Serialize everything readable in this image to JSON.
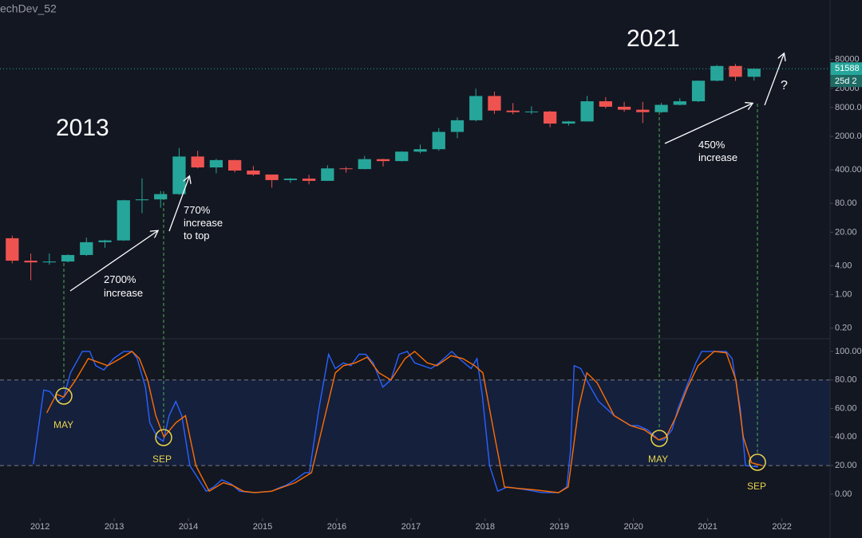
{
  "chart_data": [
    {
      "type": "candlestick",
      "watermark": "echDev_52",
      "x": [
        2011.625,
        2011.875,
        2012.125,
        2012.375,
        2012.625,
        2012.875,
        2013.125,
        2013.375,
        2013.625,
        2013.875,
        2014.125,
        2014.375,
        2014.625,
        2014.875,
        2015.125,
        2015.375,
        2015.625,
        2015.875,
        2016.125,
        2016.375,
        2016.625,
        2016.875,
        2017.125,
        2017.375,
        2017.625,
        2017.875,
        2018.125,
        2018.375,
        2018.625,
        2018.875,
        2019.125,
        2019.375,
        2019.625,
        2019.875,
        2020.125,
        2020.375,
        2020.625,
        2020.875,
        2021.125,
        2021.375,
        2021.625
      ],
      "open": [
        15,
        5.1,
        4.7,
        4.9,
        6.7,
        12.4,
        13.5,
        93,
        97,
        125,
        760,
        450,
        640,
        387,
        320,
        245,
        263,
        236,
        430,
        416,
        670,
        610,
        960,
        1080,
        2480,
        4340,
        13900,
        6900,
        6400,
        6600,
        3700,
        4100,
        10800,
        8300,
        7200,
        6400,
        9100,
        10800,
        29000,
        58800,
        35000
      ],
      "high": [
        17,
        7.2,
        7.2,
        6.9,
        15.4,
        13.9,
        95,
        266,
        145,
        1150,
        1000,
        680,
        650,
        480,
        320,
        270,
        315,
        500,
        460,
        780,
        680,
        980,
        1350,
        2980,
        5000,
        19800,
        17200,
        9900,
        8500,
        6800,
        4200,
        13900,
        13200,
        10500,
        10500,
        10000,
        12500,
        29300,
        61800,
        64900,
        52900
      ],
      "low": [
        4.5,
        2.0,
        4.2,
        4.7,
        6.4,
        9.5,
        13.2,
        50,
        65,
        120,
        430,
        340,
        355,
        300,
        170,
        215,
        200,
        235,
        350,
        410,
        470,
        600,
        890,
        1000,
        1830,
        4100,
        5900,
        5800,
        5800,
        3100,
        3350,
        4080,
        7700,
        6500,
        3800,
        6200,
        8900,
        10400,
        28100,
        28800,
        29300
      ],
      "close": [
        5.1,
        4.7,
        4.9,
        6.7,
        12.4,
        13.5,
        93,
        97,
        125,
        760,
        450,
        640,
        387,
        320,
        245,
        263,
        236,
        430,
        416,
        670,
        610,
        960,
        1080,
        2480,
        4340,
        13900,
        6900,
        6400,
        6600,
        3700,
        4100,
        10800,
        8300,
        7200,
        6400,
        9100,
        10800,
        29000,
        58800,
        35000,
        51588
      ],
      "up_color": "#26a69a",
      "down_color": "#ef5350",
      "last_price": 51588,
      "countdown": "25d 2",
      "xlim": [
        2011.46,
        2022.65
      ],
      "ylim": [
        0.12,
        1400000
      ],
      "log_scale": true,
      "yticks": [
        {
          "value": 0.2,
          "label": "0.20"
        },
        {
          "value": 1,
          "label": "1.00"
        },
        {
          "value": 4,
          "label": "4.00"
        },
        {
          "value": 20,
          "label": "20.00"
        },
        {
          "value": 80,
          "label": "80.00"
        },
        {
          "value": 400,
          "label": "400.00"
        },
        {
          "value": 2000,
          "label": "2000.0"
        },
        {
          "value": 8000,
          "label": "8000.0"
        },
        20000,
        80000
      ],
      "annotations": [
        [
          "2013"
        ],
        [
          "2021"
        ],
        [
          "2700%",
          "increase"
        ],
        [
          "770%",
          "increase",
          "to top"
        ],
        [
          "450%",
          "increase"
        ],
        [
          "?"
        ]
      ]
    },
    {
      "type": "line",
      "series": [
        {
          "color": "#2962ff",
          "x": [
            2011.91,
            2012.05,
            2012.13,
            2012.24,
            2012.32,
            2012.41,
            2012.57,
            2012.67,
            2012.75,
            2012.86,
            2012.99,
            2013.13,
            2013.24,
            2013.31,
            2013.42,
            2013.48,
            2013.58,
            2013.66,
            2013.74,
            2013.83,
            2013.91,
            2014.02,
            2014.24,
            2014.34,
            2014.45,
            2014.58,
            2014.69,
            2014.88,
            2015.12,
            2015.25,
            2015.31,
            2015.44,
            2015.57,
            2015.63,
            2015.76,
            2015.89,
            2015.98,
            2016.09,
            2016.19,
            2016.3,
            2016.39,
            2016.49,
            2016.62,
            2016.73,
            2016.84,
            2016.95,
            2017.05,
            2017.27,
            2017.38,
            2017.55,
            2017.65,
            2017.81,
            2017.89,
            2017.96,
            2018.06,
            2018.17,
            2018.3,
            2018.56,
            2018.77,
            2018.99,
            2019.1,
            2019.15,
            2019.2,
            2019.29,
            2019.42,
            2019.53,
            2019.74,
            2019.96,
            2020.06,
            2020.19,
            2020.34,
            2020.41,
            2020.52,
            2020.6,
            2020.75,
            2020.84,
            2020.92,
            2021.14,
            2021.25,
            2021.33,
            2021.44,
            2021.51,
            2021.68
          ],
          "values": [
            21,
            73,
            72,
            65,
            68,
            85,
            100,
            100,
            90,
            87,
            95,
            100,
            100,
            95,
            75,
            50,
            40,
            37,
            55,
            65,
            55,
            20,
            2,
            5,
            10,
            7,
            2,
            1,
            2,
            5,
            6,
            10,
            15,
            15,
            60,
            98,
            88,
            92,
            90,
            98,
            98,
            92,
            75,
            80,
            98,
            100,
            92,
            88,
            92,
            100,
            95,
            88,
            95,
            70,
            20,
            2,
            5,
            3,
            1,
            1,
            5,
            30,
            90,
            88,
            75,
            65,
            55,
            48,
            48,
            45,
            38,
            38,
            45,
            60,
            80,
            92,
            100,
            100,
            100,
            95,
            60,
            20,
            19
          ]
        },
        {
          "color": "#ff6d00",
          "x": [
            2012.09,
            2012.22,
            2012.32,
            2012.48,
            2012.65,
            2012.81,
            2012.91,
            2013.08,
            2013.24,
            2013.34,
            2013.45,
            2013.56,
            2013.67,
            2013.83,
            2013.96,
            2014.1,
            2014.28,
            2014.47,
            2014.6,
            2014.74,
            2014.9,
            2015.12,
            2015.28,
            2015.44,
            2015.66,
            2015.82,
            2015.98,
            2016.09,
            2016.25,
            2016.41,
            2016.57,
            2016.73,
            2016.92,
            2017.05,
            2017.22,
            2017.35,
            2017.54,
            2017.7,
            2017.86,
            2017.97,
            2018.13,
            2018.26,
            2018.45,
            2018.67,
            2018.99,
            2019.12,
            2019.26,
            2019.37,
            2019.51,
            2019.74,
            2019.96,
            2020.15,
            2020.34,
            2020.44,
            2020.58,
            2020.73,
            2020.87,
            2021.09,
            2021.25,
            2021.38,
            2021.48,
            2021.59,
            2021.73
          ],
          "values": [
            57,
            70,
            68,
            80,
            95,
            92,
            90,
            95,
            100,
            95,
            80,
            55,
            40,
            50,
            55,
            20,
            2,
            8,
            6,
            2,
            1,
            2,
            5,
            8,
            15,
            50,
            85,
            90,
            92,
            96,
            85,
            80,
            95,
            100,
            92,
            90,
            97,
            95,
            90,
            85,
            40,
            5,
            4,
            3,
            1,
            5,
            60,
            85,
            78,
            55,
            48,
            45,
            38,
            40,
            55,
            75,
            90,
            100,
            99,
            80,
            40,
            22,
            20
          ]
        }
      ],
      "band": [
        20,
        80
      ],
      "xlim": [
        2011.46,
        2022.65
      ],
      "xticks": [
        2012,
        2013,
        2014,
        2015,
        2016,
        2017,
        2018,
        2019,
        2020,
        2021,
        2022
      ],
      "ylim": [
        -16.8,
        108.9
      ],
      "yticks": [
        {
          "value": 0,
          "label": "0.00"
        },
        {
          "value": 20,
          "label": "20.00"
        },
        {
          "value": 40,
          "label": "40.00"
        },
        {
          "value": 60,
          "label": "60.00"
        },
        {
          "value": 80,
          "label": "80.00"
        },
        {
          "value": 100,
          "label": "100.00"
        }
      ],
      "annotations": [
        "MAY",
        "SEP",
        "MAY",
        "SEP"
      ]
    }
  ]
}
